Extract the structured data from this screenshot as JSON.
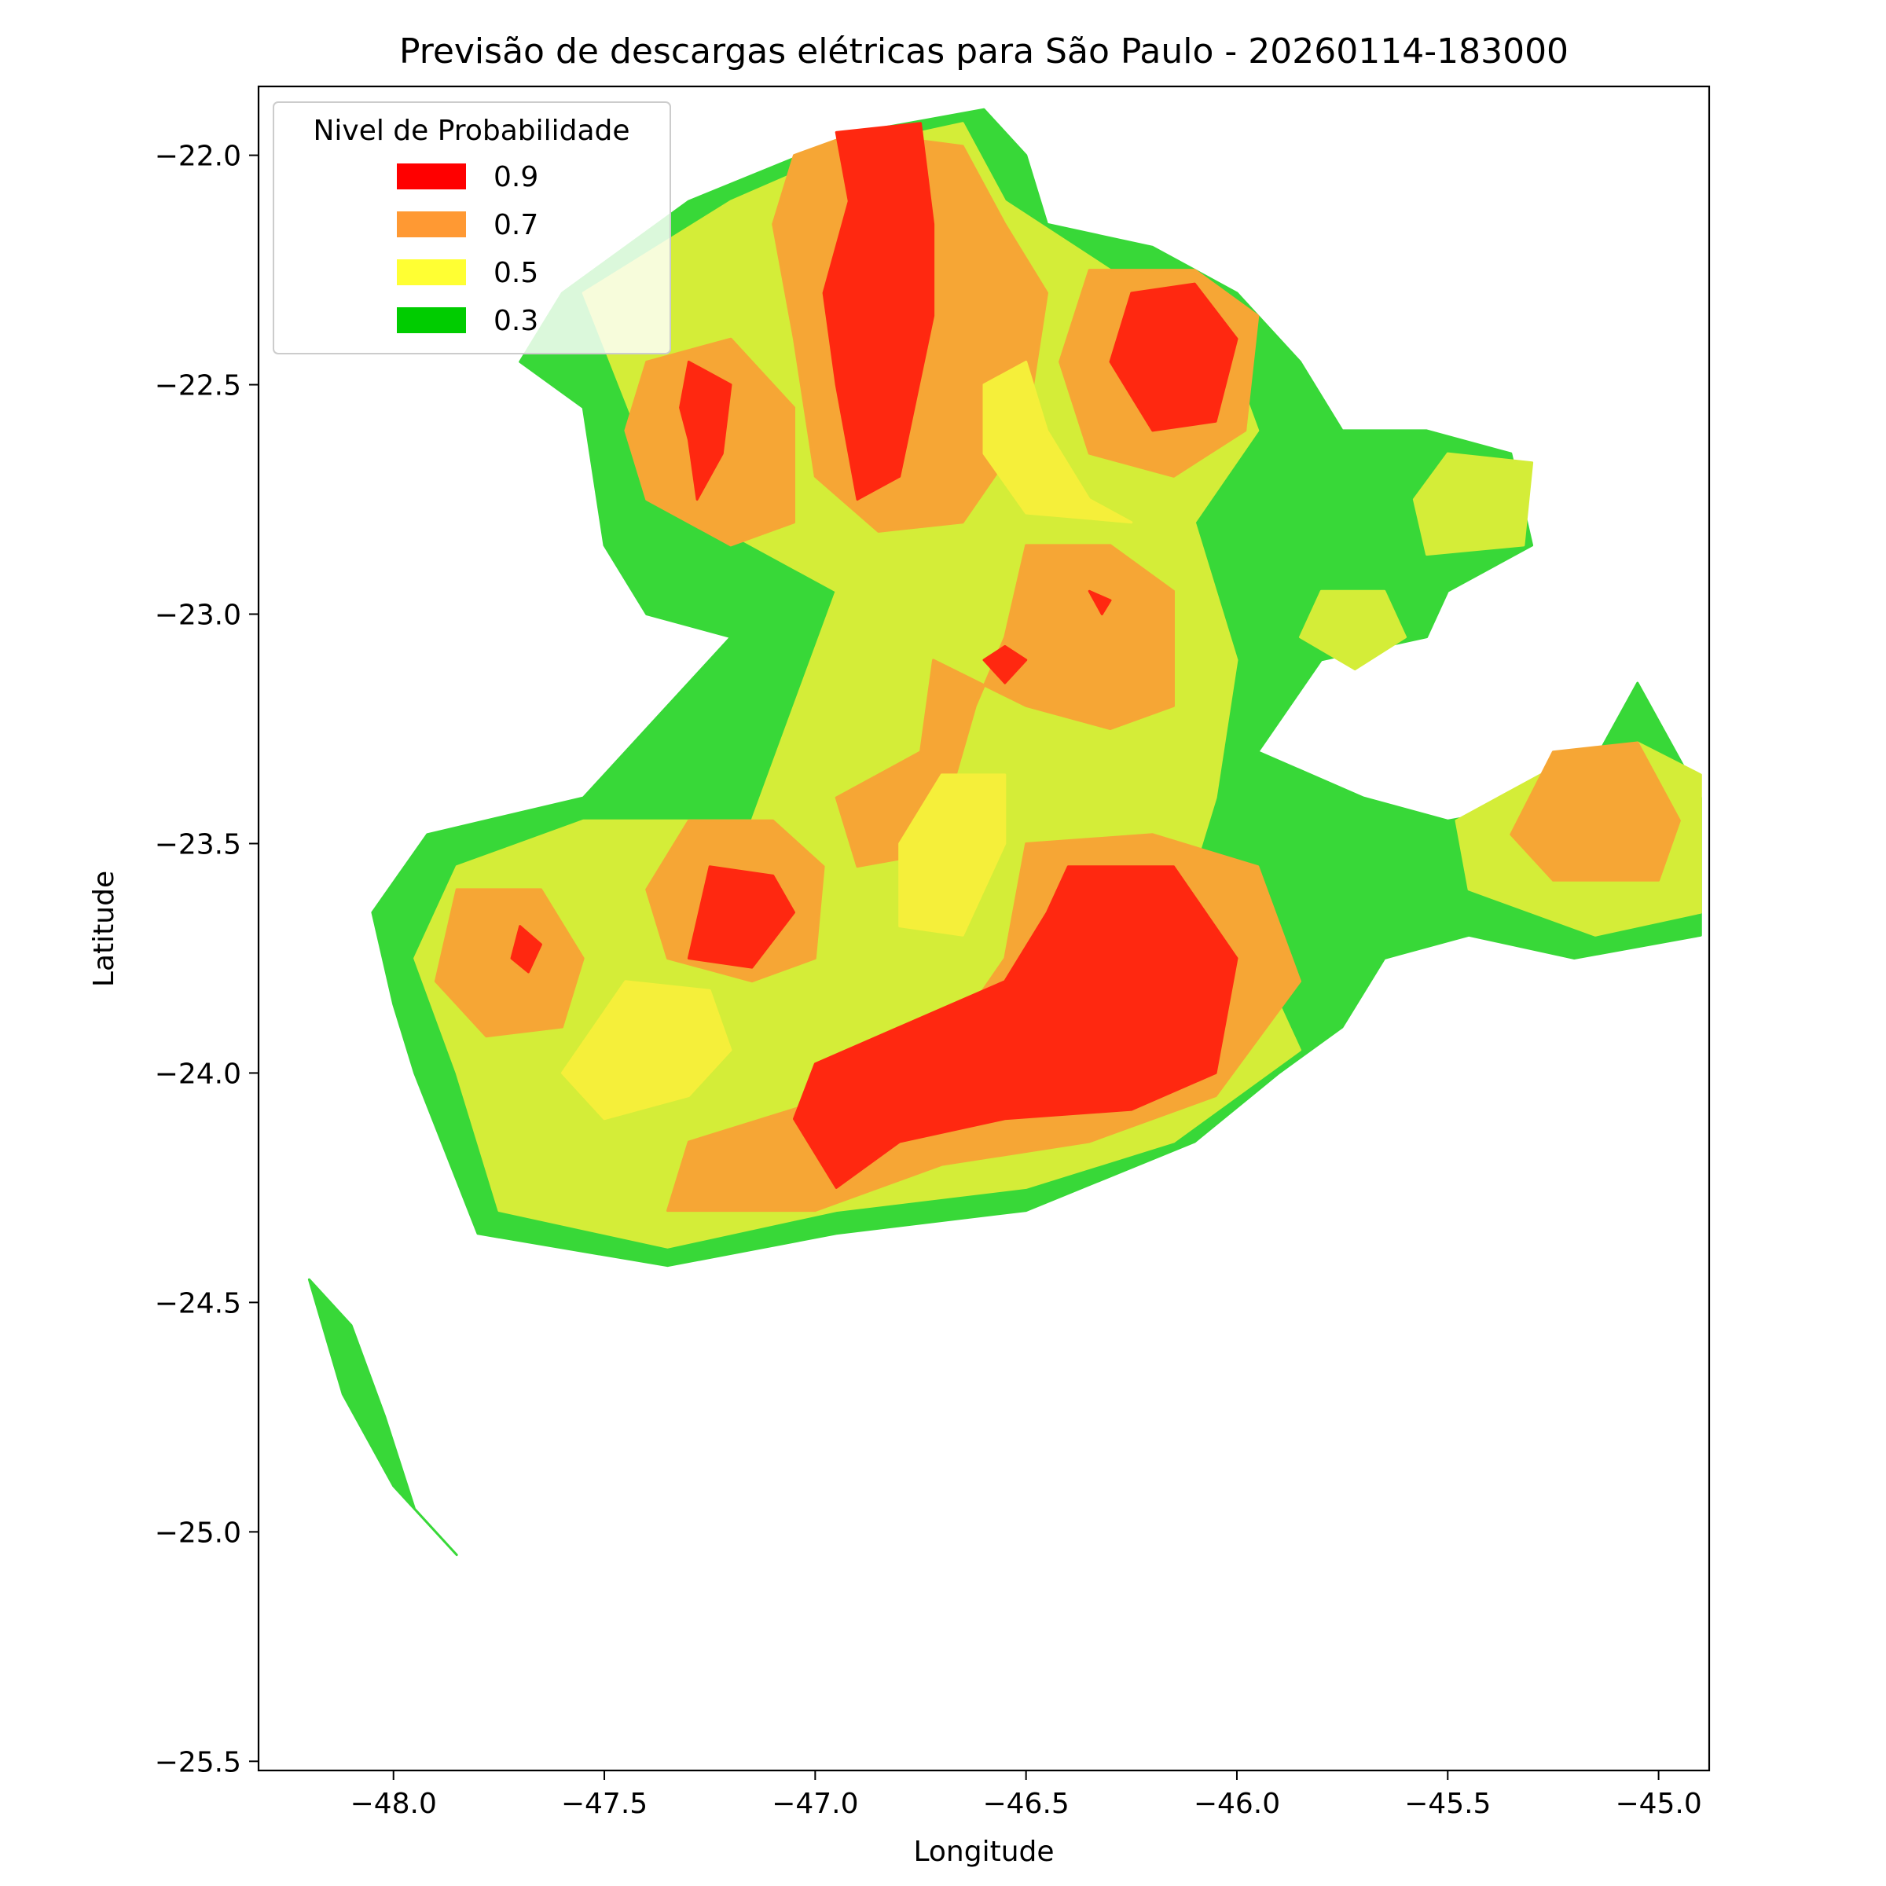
{
  "chart_data": {
    "type": "heatmap",
    "title": "Previsão de descargas elétricas para São Paulo - 20260114-183000",
    "xlabel": "Longitude",
    "ylabel": "Latitude",
    "xlim": [
      -48.32,
      -44.88
    ],
    "ylim": [
      -25.52,
      -21.85
    ],
    "xticks": [
      -48.0,
      -47.5,
      -47.0,
      -46.5,
      -46.0,
      -45.5,
      -45.0
    ],
    "xtick_labels": [
      "−48.0",
      "−47.5",
      "−47.0",
      "−46.5",
      "−46.0",
      "−45.5",
      "−45.0"
    ],
    "yticks": [
      -22.0,
      -22.5,
      -23.0,
      -23.5,
      -24.0,
      -24.5,
      -25.0,
      -25.5
    ],
    "ytick_labels": [
      "−22.0",
      "−22.5",
      "−23.0",
      "−23.5",
      "−24.0",
      "−24.5",
      "−25.0",
      "−25.5"
    ],
    "legend": {
      "title": "Nivel de Probabilidade",
      "placement": "top-left",
      "entries": [
        {
          "label": "0.9",
          "color": "#ff0000"
        },
        {
          "label": "0.7",
          "color": "#ff9933"
        },
        {
          "label": "0.5",
          "color": "#ffff33"
        },
        {
          "label": "0.3",
          "color": "#00cc00"
        }
      ]
    },
    "level_colors": {
      "0.3": "#38d838",
      "0.4": "#d4ed38",
      "0.5": "#f5ef3a",
      "0.7": "#f6a635",
      "0.9": "#ff2810"
    },
    "regions": [
      {
        "level": "0.3",
        "points": [
          [
            -47.6,
            -22.3
          ],
          [
            -47.3,
            -22.1
          ],
          [
            -46.9,
            -21.95
          ],
          [
            -46.6,
            -21.9
          ],
          [
            -46.5,
            -22.0
          ],
          [
            -46.45,
            -22.15
          ],
          [
            -46.2,
            -22.2
          ],
          [
            -46.0,
            -22.3
          ],
          [
            -45.85,
            -22.45
          ],
          [
            -45.75,
            -22.6
          ],
          [
            -45.55,
            -22.6
          ],
          [
            -45.35,
            -22.65
          ],
          [
            -45.3,
            -22.85
          ],
          [
            -45.5,
            -22.95
          ],
          [
            -45.55,
            -23.05
          ],
          [
            -45.8,
            -23.1
          ],
          [
            -45.95,
            -23.3
          ],
          [
            -45.7,
            -23.4
          ],
          [
            -45.5,
            -23.45
          ],
          [
            -45.2,
            -23.4
          ],
          [
            -45.05,
            -23.15
          ],
          [
            -44.9,
            -23.4
          ],
          [
            -44.9,
            -23.7
          ],
          [
            -45.2,
            -23.75
          ],
          [
            -45.45,
            -23.7
          ],
          [
            -45.65,
            -23.75
          ],
          [
            -45.75,
            -23.9
          ],
          [
            -45.9,
            -24.0
          ],
          [
            -46.1,
            -24.15
          ],
          [
            -46.5,
            -24.3
          ],
          [
            -46.95,
            -24.35
          ],
          [
            -47.35,
            -24.42
          ],
          [
            -47.8,
            -24.35
          ],
          [
            -47.95,
            -24.0
          ],
          [
            -48.0,
            -23.85
          ],
          [
            -48.05,
            -23.65
          ],
          [
            -47.92,
            -23.48
          ],
          [
            -47.55,
            -23.4
          ],
          [
            -47.35,
            -23.2
          ],
          [
            -47.2,
            -23.05
          ],
          [
            -47.4,
            -23.0
          ],
          [
            -47.5,
            -22.85
          ],
          [
            -47.55,
            -22.55
          ],
          [
            -47.7,
            -22.45
          ]
        ]
      },
      {
        "level": "0.3",
        "points": [
          [
            -48.2,
            -24.45
          ],
          [
            -48.1,
            -24.55
          ],
          [
            -48.02,
            -24.75
          ],
          [
            -47.95,
            -24.95
          ],
          [
            -47.85,
            -25.05
          ],
          [
            -48.0,
            -24.9
          ],
          [
            -48.12,
            -24.7
          ]
        ]
      },
      {
        "level": "0.4",
        "points": [
          [
            -47.55,
            -22.3
          ],
          [
            -47.2,
            -22.1
          ],
          [
            -46.9,
            -21.98
          ],
          [
            -46.65,
            -21.93
          ],
          [
            -46.55,
            -22.1
          ],
          [
            -46.3,
            -22.25
          ],
          [
            -46.05,
            -22.35
          ],
          [
            -45.95,
            -22.6
          ],
          [
            -46.1,
            -22.8
          ],
          [
            -46.0,
            -23.1
          ],
          [
            -46.05,
            -23.4
          ],
          [
            -46.1,
            -23.55
          ],
          [
            -45.95,
            -23.75
          ],
          [
            -45.85,
            -23.95
          ],
          [
            -46.15,
            -24.15
          ],
          [
            -46.5,
            -24.25
          ],
          [
            -46.95,
            -24.3
          ],
          [
            -47.35,
            -24.38
          ],
          [
            -47.75,
            -24.3
          ],
          [
            -47.85,
            -24.0
          ],
          [
            -47.95,
            -23.75
          ],
          [
            -47.85,
            -23.55
          ],
          [
            -47.55,
            -23.45
          ],
          [
            -47.15,
            -23.45
          ],
          [
            -47.05,
            -23.2
          ],
          [
            -46.95,
            -22.95
          ],
          [
            -47.25,
            -22.8
          ],
          [
            -47.4,
            -22.65
          ]
        ]
      },
      {
        "level": "0.4",
        "points": [
          [
            -45.5,
            -22.65
          ],
          [
            -45.3,
            -22.67
          ],
          [
            -45.32,
            -22.85
          ],
          [
            -45.55,
            -22.87
          ],
          [
            -45.58,
            -22.75
          ]
        ]
      },
      {
        "level": "0.4",
        "points": [
          [
            -45.8,
            -22.95
          ],
          [
            -45.65,
            -22.95
          ],
          [
            -45.6,
            -23.05
          ],
          [
            -45.72,
            -23.12
          ],
          [
            -45.85,
            -23.05
          ]
        ]
      },
      {
        "level": "0.4",
        "points": [
          [
            -45.28,
            -23.35
          ],
          [
            -45.05,
            -23.28
          ],
          [
            -44.9,
            -23.35
          ],
          [
            -44.9,
            -23.65
          ],
          [
            -45.15,
            -23.7
          ],
          [
            -45.45,
            -23.6
          ],
          [
            -45.48,
            -23.45
          ]
        ]
      },
      {
        "level": "0.7",
        "points": [
          [
            -47.4,
            -22.45
          ],
          [
            -47.2,
            -22.4
          ],
          [
            -47.05,
            -22.55
          ],
          [
            -47.05,
            -22.8
          ],
          [
            -47.2,
            -22.85
          ],
          [
            -47.4,
            -22.75
          ],
          [
            -47.45,
            -22.6
          ]
        ]
      },
      {
        "level": "0.7",
        "points": [
          [
            -47.05,
            -22.0
          ],
          [
            -46.9,
            -21.95
          ],
          [
            -46.65,
            -21.98
          ],
          [
            -46.55,
            -22.15
          ],
          [
            -46.45,
            -22.3
          ],
          [
            -46.5,
            -22.6
          ],
          [
            -46.65,
            -22.8
          ],
          [
            -46.85,
            -22.82
          ],
          [
            -47.0,
            -22.7
          ],
          [
            -47.05,
            -22.4
          ],
          [
            -47.1,
            -22.15
          ]
        ]
      },
      {
        "level": "0.7",
        "points": [
          [
            -46.35,
            -22.25
          ],
          [
            -46.1,
            -22.25
          ],
          [
            -45.95,
            -22.35
          ],
          [
            -45.98,
            -22.6
          ],
          [
            -46.15,
            -22.7
          ],
          [
            -46.35,
            -22.65
          ],
          [
            -46.42,
            -22.45
          ]
        ]
      },
      {
        "level": "0.7",
        "points": [
          [
            -46.5,
            -22.85
          ],
          [
            -46.3,
            -22.85
          ],
          [
            -46.15,
            -22.95
          ],
          [
            -46.15,
            -23.2
          ],
          [
            -46.3,
            -23.25
          ],
          [
            -46.5,
            -23.2
          ],
          [
            -46.72,
            -23.1
          ],
          [
            -46.75,
            -23.3
          ],
          [
            -46.95,
            -23.4
          ],
          [
            -46.9,
            -23.55
          ],
          [
            -46.72,
            -23.52
          ],
          [
            -46.62,
            -23.2
          ],
          [
            -46.55,
            -23.05
          ]
        ]
      },
      {
        "level": "0.7",
        "points": [
          [
            -47.3,
            -23.45
          ],
          [
            -47.1,
            -23.45
          ],
          [
            -46.98,
            -23.55
          ],
          [
            -47.0,
            -23.75
          ],
          [
            -47.15,
            -23.8
          ],
          [
            -47.35,
            -23.75
          ],
          [
            -47.4,
            -23.6
          ]
        ]
      },
      {
        "level": "0.7",
        "points": [
          [
            -47.85,
            -23.6
          ],
          [
            -47.65,
            -23.6
          ],
          [
            -47.55,
            -23.75
          ],
          [
            -47.6,
            -23.9
          ],
          [
            -47.78,
            -23.92
          ],
          [
            -47.9,
            -23.8
          ]
        ]
      },
      {
        "level": "0.7",
        "points": [
          [
            -46.5,
            -23.5
          ],
          [
            -46.2,
            -23.48
          ],
          [
            -45.95,
            -23.55
          ],
          [
            -45.85,
            -23.8
          ],
          [
            -46.05,
            -24.05
          ],
          [
            -46.35,
            -24.15
          ],
          [
            -46.7,
            -24.2
          ],
          [
            -47.0,
            -24.3
          ],
          [
            -47.35,
            -24.3
          ],
          [
            -47.3,
            -24.15
          ],
          [
            -46.95,
            -24.05
          ],
          [
            -46.7,
            -23.95
          ],
          [
            -46.55,
            -23.75
          ]
        ]
      },
      {
        "level": "0.7",
        "points": [
          [
            -45.25,
            -23.3
          ],
          [
            -45.05,
            -23.28
          ],
          [
            -44.95,
            -23.45
          ],
          [
            -45.0,
            -23.58
          ],
          [
            -45.25,
            -23.58
          ],
          [
            -45.35,
            -23.48
          ]
        ]
      },
      {
        "level": "0.5",
        "points": [
          [
            -46.6,
            -22.5
          ],
          [
            -46.5,
            -22.45
          ],
          [
            -46.45,
            -22.6
          ],
          [
            -46.35,
            -22.75
          ],
          [
            -46.25,
            -22.8
          ],
          [
            -46.5,
            -22.78
          ],
          [
            -46.6,
            -22.65
          ]
        ]
      },
      {
        "level": "0.5",
        "points": [
          [
            -46.7,
            -23.35
          ],
          [
            -46.55,
            -23.35
          ],
          [
            -46.55,
            -23.5
          ],
          [
            -46.65,
            -23.7
          ],
          [
            -46.8,
            -23.68
          ],
          [
            -46.8,
            -23.5
          ]
        ]
      },
      {
        "level": "0.5",
        "points": [
          [
            -47.45,
            -23.8
          ],
          [
            -47.25,
            -23.82
          ],
          [
            -47.2,
            -23.95
          ],
          [
            -47.3,
            -24.05
          ],
          [
            -47.5,
            -24.1
          ],
          [
            -47.6,
            -24.0
          ]
        ]
      },
      {
        "level": "0.9",
        "points": [
          [
            -47.3,
            -22.45
          ],
          [
            -47.2,
            -22.5
          ],
          [
            -47.22,
            -22.65
          ],
          [
            -47.28,
            -22.75
          ],
          [
            -47.3,
            -22.62
          ],
          [
            -47.32,
            -22.55
          ]
        ]
      },
      {
        "level": "0.9",
        "points": [
          [
            -46.95,
            -21.95
          ],
          [
            -46.75,
            -21.93
          ],
          [
            -46.72,
            -22.15
          ],
          [
            -46.72,
            -22.35
          ],
          [
            -46.8,
            -22.7
          ],
          [
            -46.9,
            -22.75
          ],
          [
            -46.95,
            -22.5
          ],
          [
            -46.98,
            -22.3
          ],
          [
            -46.92,
            -22.1
          ]
        ]
      },
      {
        "level": "0.9",
        "points": [
          [
            -46.25,
            -22.3
          ],
          [
            -46.1,
            -22.28
          ],
          [
            -46.0,
            -22.4
          ],
          [
            -46.05,
            -22.58
          ],
          [
            -46.2,
            -22.6
          ],
          [
            -46.3,
            -22.45
          ]
        ]
      },
      {
        "level": "0.9",
        "points": [
          [
            -46.35,
            -22.95
          ],
          [
            -46.3,
            -22.97
          ],
          [
            -46.32,
            -23.0
          ]
        ]
      },
      {
        "level": "0.9",
        "points": [
          [
            -46.55,
            -23.07
          ],
          [
            -46.5,
            -23.1
          ],
          [
            -46.55,
            -23.15
          ],
          [
            -46.6,
            -23.1
          ]
        ]
      },
      {
        "level": "0.9",
        "points": [
          [
            -47.25,
            -23.55
          ],
          [
            -47.1,
            -23.57
          ],
          [
            -47.05,
            -23.65
          ],
          [
            -47.15,
            -23.77
          ],
          [
            -47.3,
            -23.75
          ]
        ]
      },
      {
        "level": "0.9",
        "points": [
          [
            -47.7,
            -23.68
          ],
          [
            -47.65,
            -23.72
          ],
          [
            -47.68,
            -23.78
          ],
          [
            -47.72,
            -23.75
          ]
        ]
      },
      {
        "level": "0.9",
        "points": [
          [
            -46.4,
            -23.55
          ],
          [
            -46.15,
            -23.55
          ],
          [
            -46.0,
            -23.75
          ],
          [
            -46.05,
            -24.0
          ],
          [
            -46.25,
            -24.08
          ],
          [
            -46.55,
            -24.1
          ],
          [
            -46.8,
            -24.15
          ],
          [
            -46.95,
            -24.25
          ],
          [
            -47.05,
            -24.1
          ],
          [
            -47.0,
            -23.98
          ],
          [
            -46.8,
            -23.9
          ],
          [
            -46.55,
            -23.8
          ],
          [
            -46.45,
            -23.65
          ]
        ]
      }
    ]
  }
}
